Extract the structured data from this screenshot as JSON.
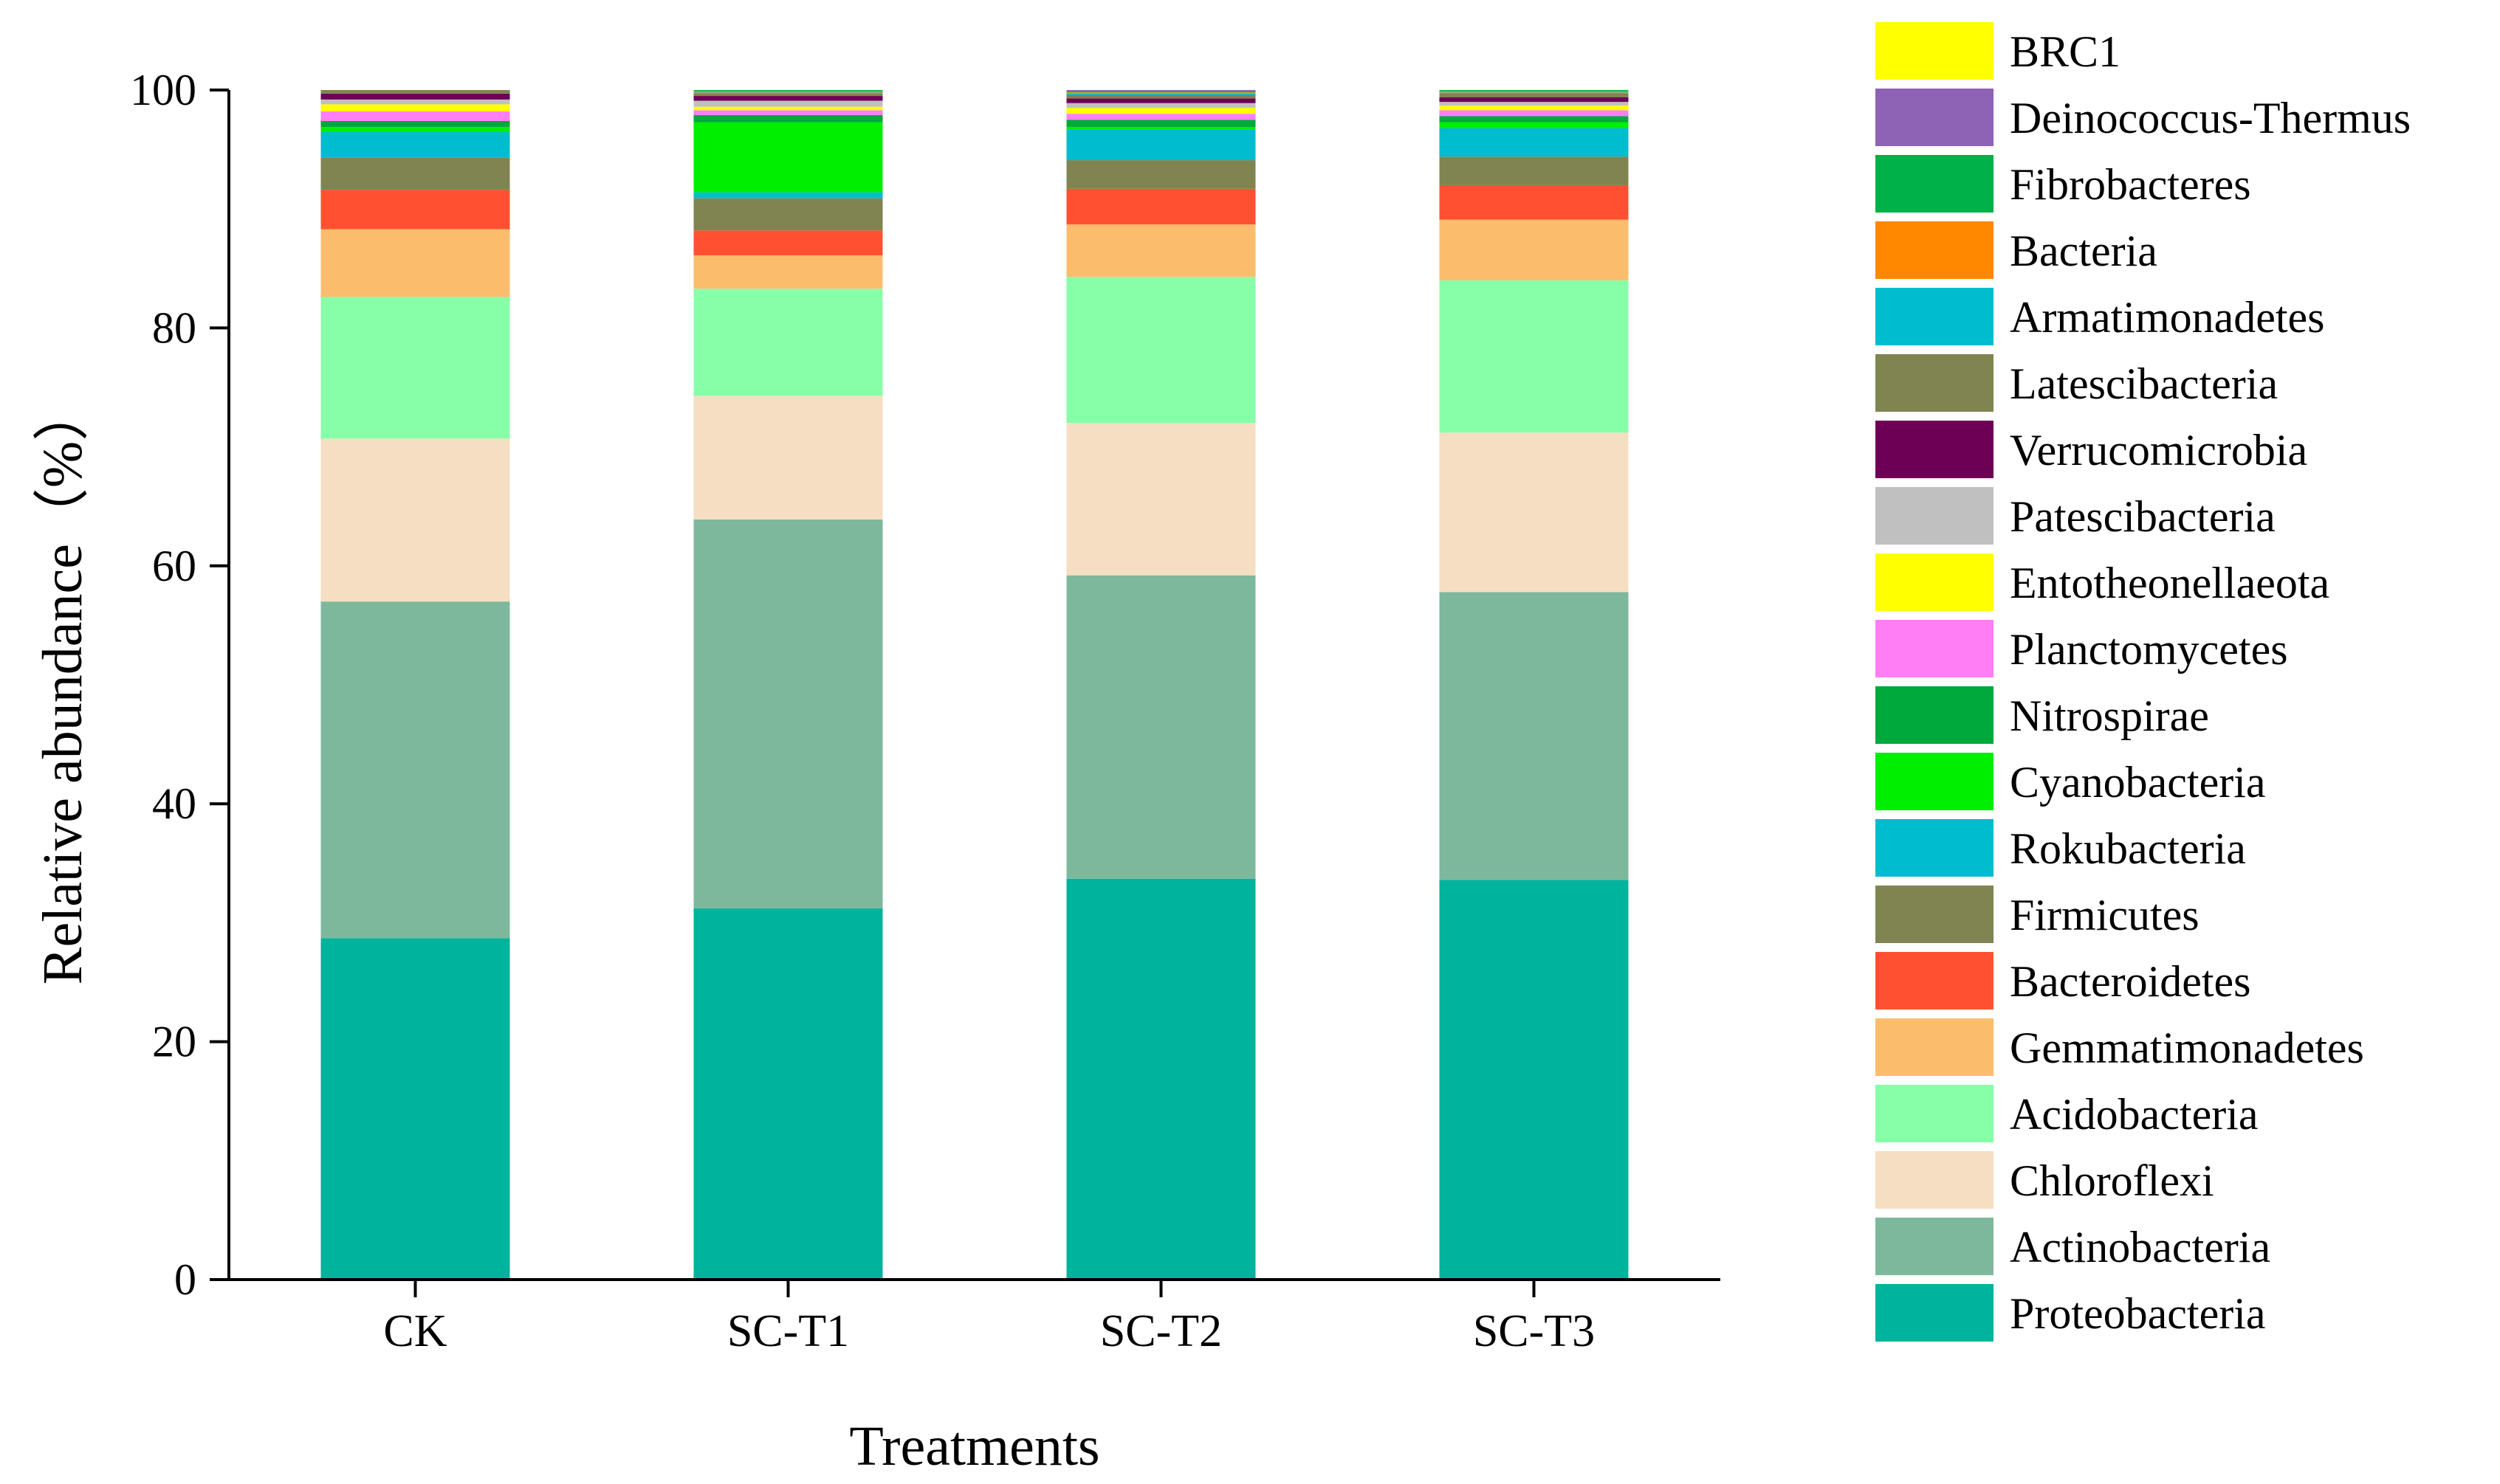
{
  "chart_data": {
    "type": "bar",
    "stacked": true,
    "title": "",
    "xlabel": "Treatments",
    "ylabel": "Relative abundance（%）",
    "ylim": [
      0,
      100
    ],
    "yticks": [
      0,
      20,
      40,
      60,
      80,
      100
    ],
    "grid": false,
    "legend_position": "right",
    "categories": [
      "CK",
      "SC-T1",
      "SC-T2",
      "SC-T3"
    ],
    "series": [
      {
        "name": "Proteobacteria",
        "color": "#00B39C",
        "values": [
          28.7,
          31.2,
          33.7,
          33.6
        ]
      },
      {
        "name": "Actinobacteria",
        "color": "#7DB89D",
        "values": [
          28.3,
          32.7,
          25.5,
          24.2
        ]
      },
      {
        "name": "Chloroflexi",
        "color": "#F5DEC2",
        "values": [
          13.7,
          10.4,
          12.8,
          13.4
        ]
      },
      {
        "name": "Acidobacteria",
        "color": "#87FFA8",
        "values": [
          11.9,
          9.0,
          12.3,
          12.8
        ]
      },
      {
        "name": "Gemmatimonadetes",
        "color": "#FBBD6C",
        "values": [
          5.7,
          2.8,
          4.4,
          5.1
        ]
      },
      {
        "name": "Bacteroidetes",
        "color": "#FF5131",
        "values": [
          3.3,
          2.1,
          3.0,
          2.9
        ]
      },
      {
        "name": "Firmicutes",
        "color": "#808450",
        "values": [
          2.7,
          2.7,
          2.4,
          2.4
        ]
      },
      {
        "name": "Rokubacteria",
        "color": "#00BCCF",
        "values": [
          2.2,
          0.5,
          2.6,
          2.4
        ]
      },
      {
        "name": "Cyanobacteria",
        "color": "#00EE00",
        "values": [
          0.4,
          5.9,
          0.2,
          0.5
        ]
      },
      {
        "name": "Nitrospirae",
        "color": "#00A93B",
        "values": [
          0.5,
          0.6,
          0.6,
          0.5
        ]
      },
      {
        "name": "Planctomycetes",
        "color": "#FF7DF5",
        "values": [
          0.8,
          0.4,
          0.5,
          0.5
        ]
      },
      {
        "name": "Entotheonellaeota",
        "color": "#FFFF00",
        "values": [
          0.6,
          0.3,
          0.5,
          0.4
        ]
      },
      {
        "name": "Patescibacteria",
        "color": "#C0C0C0",
        "values": [
          0.4,
          0.5,
          0.4,
          0.3
        ]
      },
      {
        "name": "Verrucomicrobia",
        "color": "#6D0055",
        "values": [
          0.5,
          0.4,
          0.4,
          0.4
        ]
      },
      {
        "name": "Latescibacteria",
        "color": "#808450",
        "values": [
          0.3,
          0.2,
          0.3,
          0.3
        ]
      },
      {
        "name": "Armatimonadetes",
        "color": "#00BCCF",
        "values": [
          0.2,
          0.1,
          0.1,
          0.1
        ]
      },
      {
        "name": "Bacteria",
        "color": "#FF8800",
        "values": [
          0.1,
          0.1,
          0.1,
          0.1
        ]
      },
      {
        "name": "Fibrobacteres",
        "color": "#00B048",
        "values": [
          0.1,
          0.1,
          0.1,
          0.1
        ]
      },
      {
        "name": "Deinococcus-Thermus",
        "color": "#8E62B4",
        "values": [
          0.2,
          0.1,
          0.1,
          0.1
        ]
      },
      {
        "name": "BRC1",
        "color": "#FFFF00",
        "values": [
          0.4,
          0.3,
          0.2,
          0.2
        ]
      }
    ]
  }
}
